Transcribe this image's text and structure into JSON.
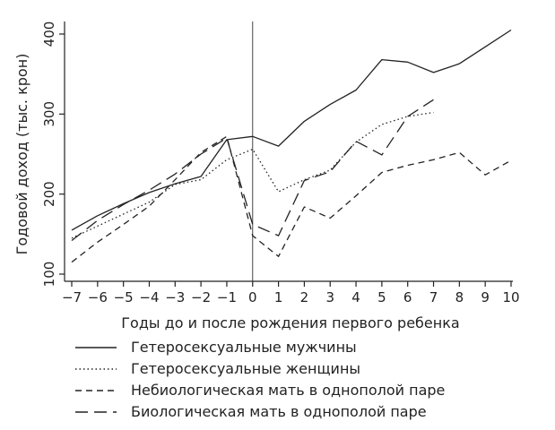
{
  "chart_data": {
    "type": "line",
    "title": "",
    "xlabel": "Годы до и после рождения первого ребенка",
    "ylabel": "Годовой доход (тыс. крон)",
    "xlim": [
      -7,
      10
    ],
    "ylim": [
      100,
      400
    ],
    "xticks": [
      -7,
      -6,
      -5,
      -4,
      -3,
      -2,
      -1,
      0,
      1,
      2,
      3,
      4,
      5,
      6,
      7,
      8,
      9,
      10
    ],
    "xtick_labels": [
      "−7",
      "−6",
      "−5",
      "−4",
      "−3",
      "−2",
      "−1",
      "0",
      "1",
      "2",
      "3",
      "4",
      "5",
      "6",
      "7",
      "8",
      "9",
      "10"
    ],
    "yticks": [
      100,
      200,
      300,
      400
    ],
    "ytick_labels": [
      "100",
      "200",
      "300",
      "400"
    ],
    "grid": false,
    "vertical_reference_line_x": 0,
    "legend_position": "bottom",
    "series": [
      {
        "name": "Гетеросексуальные мужчины",
        "style": "solid",
        "x": [
          -7,
          -6,
          -5,
          -4,
          -3,
          -2,
          -1,
          0,
          1,
          2,
          3,
          4,
          5,
          6,
          7,
          8,
          9,
          10
        ],
        "values": [
          155,
          173,
          188,
          202,
          213,
          222,
          268,
          272,
          260,
          291,
          312,
          330,
          368,
          365,
          352,
          363,
          384,
          405
        ]
      },
      {
        "name": "Гетеросексуальные женщины",
        "style": "dotted",
        "x": [
          -7,
          -6,
          -5,
          -4,
          -3,
          -2,
          -1,
          0,
          1,
          2,
          3,
          4,
          5,
          6,
          7
        ],
        "values": [
          145,
          160,
          175,
          190,
          212,
          218,
          243,
          256,
          203,
          218,
          230,
          265,
          287,
          297,
          302
        ]
      },
      {
        "name": "Небиологическая мать в однополой паре",
        "style": "short-dash",
        "x": [
          -7,
          -6,
          -5,
          -4,
          -3,
          -2,
          -1,
          0,
          1,
          2,
          3,
          4,
          5,
          6,
          7,
          8,
          9,
          10
        ],
        "values": [
          115,
          140,
          162,
          185,
          218,
          252,
          272,
          148,
          122,
          184,
          170,
          198,
          227,
          236,
          243,
          252,
          224,
          242
        ]
      },
      {
        "name": "Биологическая мать в однополой паре",
        "style": "long-dash",
        "x": [
          -7,
          -6,
          -5,
          -4,
          -3,
          -2,
          -1,
          0,
          1,
          2,
          3,
          4,
          5,
          6,
          7
        ],
        "values": [
          142,
          167,
          187,
          205,
          225,
          250,
          270,
          162,
          148,
          217,
          228,
          266,
          249,
          297,
          318
        ]
      }
    ]
  }
}
